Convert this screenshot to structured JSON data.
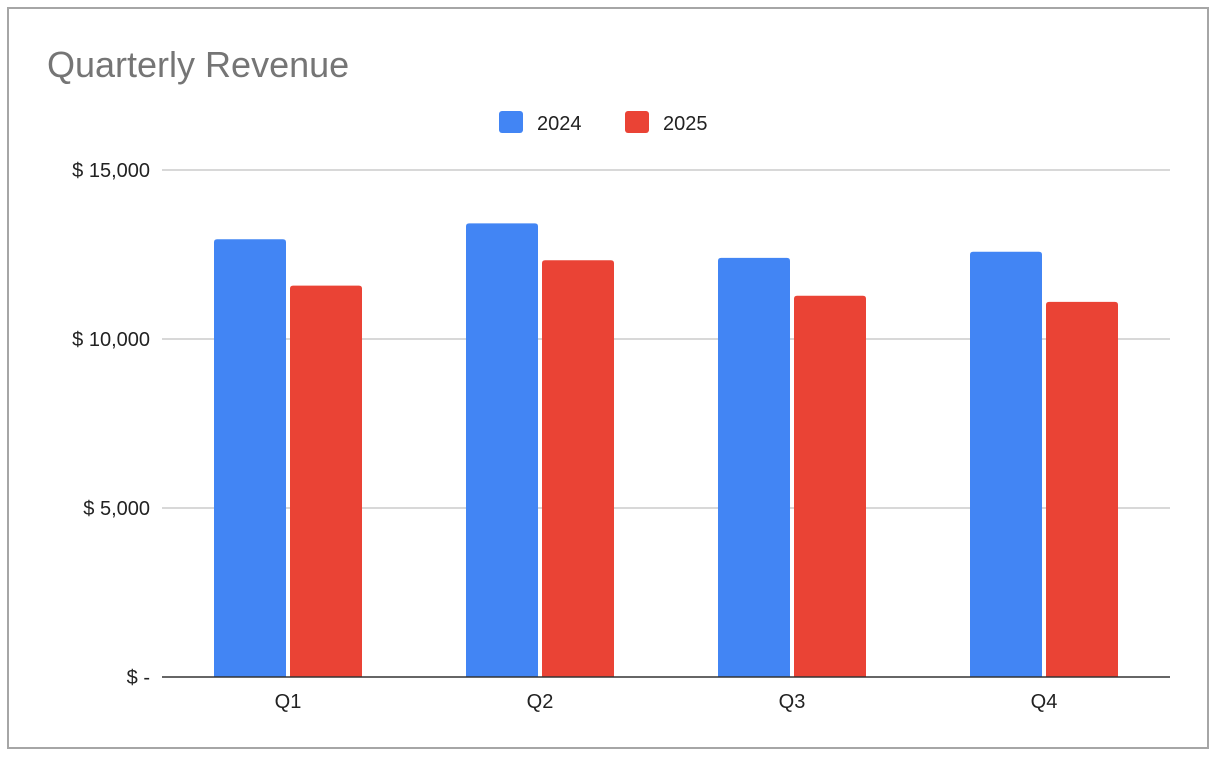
{
  "chart_data": {
    "type": "bar",
    "title": "Quarterly Revenue",
    "xlabel": "",
    "ylabel": "",
    "categories": [
      "Q1",
      "Q2",
      "Q3",
      "Q4"
    ],
    "series": [
      {
        "name": "2024",
        "color": "#4285f4",
        "values": [
          12950,
          13420,
          12400,
          12580
        ]
      },
      {
        "name": "2025",
        "color": "#ea4335",
        "values": [
          11580,
          12330,
          11280,
          11100
        ]
      }
    ],
    "ylim": [
      0,
      15000
    ],
    "yticks": [
      0,
      5000,
      10000,
      15000
    ],
    "ytick_labels": [
      "$ -",
      "$ 5,000",
      "$ 10,000",
      "$ 15,000"
    ],
    "grid": true,
    "legend_position": "top-center"
  }
}
